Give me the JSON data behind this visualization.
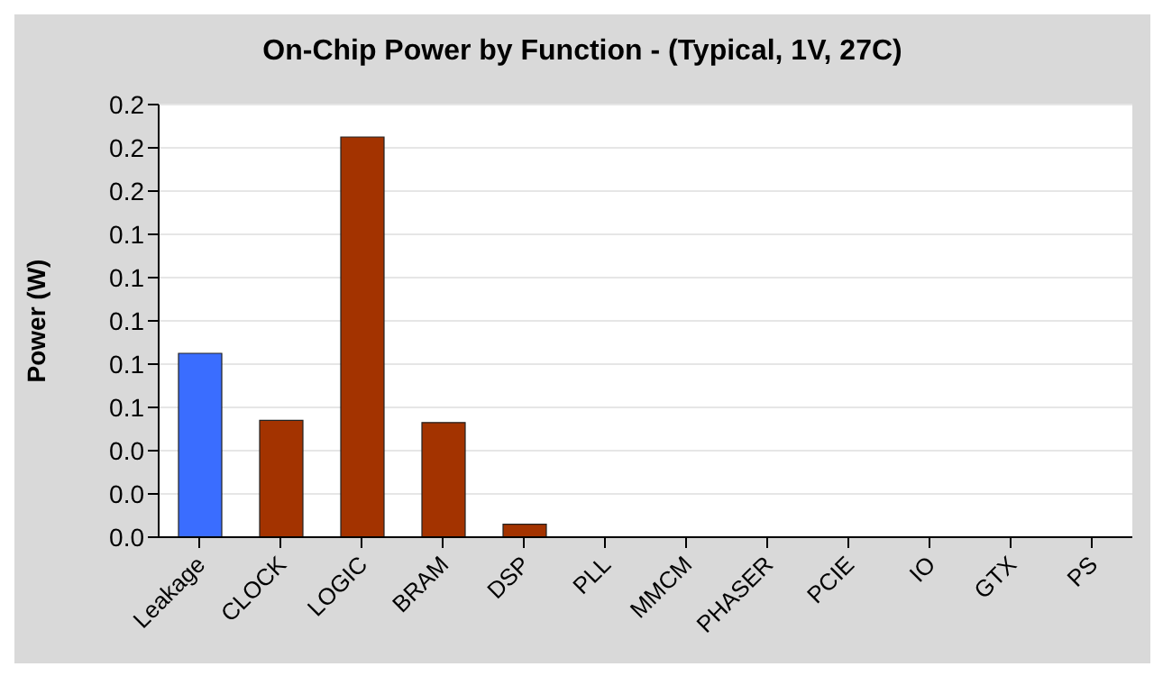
{
  "chart_data": {
    "type": "bar",
    "title": "On-Chip Power by Function - (Typical, 1V, 27C)",
    "ylabel": "Power (W)",
    "categories": [
      "Leakage",
      "CLOCK",
      "LOGIC",
      "BRAM",
      "DSP",
      "PLL",
      "MMCM",
      "PHASER",
      "PCIE",
      "IO",
      "GTX",
      "PS"
    ],
    "values": [
      0.085,
      0.054,
      0.185,
      0.053,
      0.006,
      0,
      0,
      0,
      0,
      0,
      0,
      0
    ],
    "colors": [
      "#3a6dff",
      "#a33300",
      "#a33300",
      "#a33300",
      "#a33300",
      "#a33300",
      "#a33300",
      "#a33300",
      "#a33300",
      "#a33300",
      "#a33300",
      "#a33300"
    ],
    "ylim": [
      0,
      0.2
    ],
    "yticks": [
      {
        "value": 0,
        "label": "0.0"
      },
      {
        "value": 0.02,
        "label": "0.0"
      },
      {
        "value": 0.04,
        "label": "0.0"
      },
      {
        "value": 0.06,
        "label": "0.1"
      },
      {
        "value": 0.08,
        "label": "0.1"
      },
      {
        "value": 0.1,
        "label": "0.1"
      },
      {
        "value": 0.12,
        "label": "0.1"
      },
      {
        "value": 0.14,
        "label": "0.1"
      },
      {
        "value": 0.16,
        "label": "0.2"
      },
      {
        "value": 0.18,
        "label": "0.2"
      },
      {
        "value": 0.2,
        "label": "0.2"
      }
    ],
    "grid": "y",
    "legend": false
  }
}
